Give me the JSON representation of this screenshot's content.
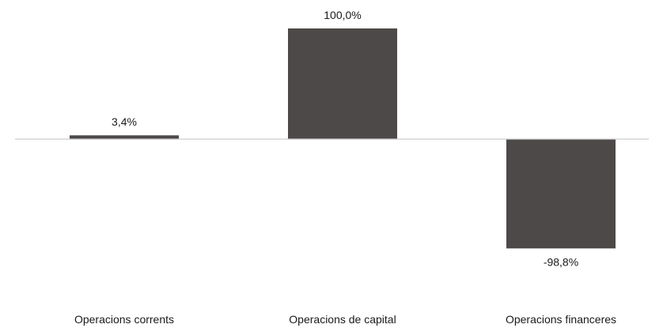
{
  "chart_data": {
    "type": "bar",
    "categories": [
      "Operacions corrents",
      "Operacions de capital",
      "Operacions financeres"
    ],
    "values": [
      3.4,
      100.0,
      -98.8
    ],
    "value_labels": [
      "3,4%",
      "100,0%",
      "-98,8%"
    ],
    "title": "",
    "xlabel": "",
    "ylabel": "",
    "ylim": [
      -100,
      100
    ],
    "grid": false,
    "legend": "none",
    "bar_color": "#4d4948",
    "zero_line_color": "#cccccc"
  }
}
